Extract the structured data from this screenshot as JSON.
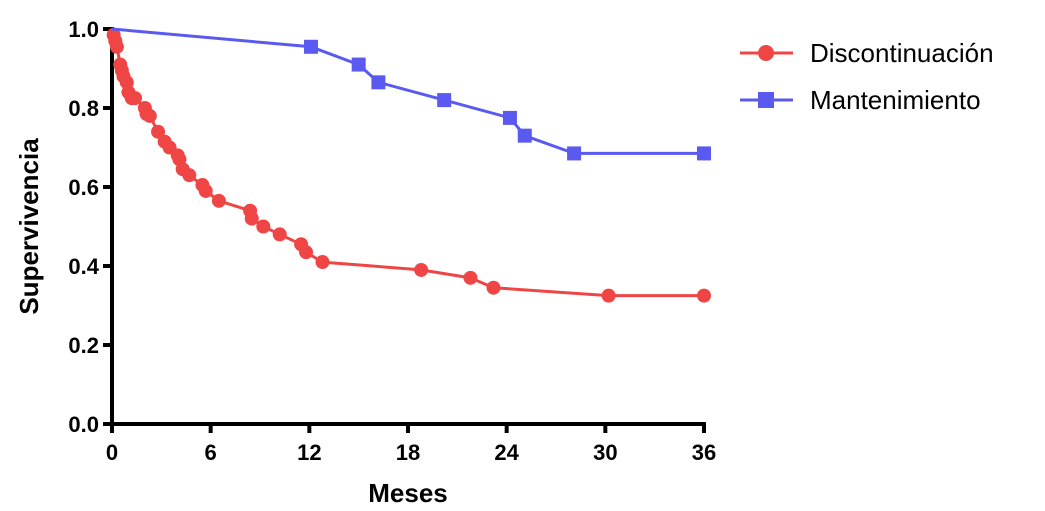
{
  "chart_data": {
    "type": "line",
    "xlabel": "Meses",
    "ylabel": "Supervivencia",
    "xlim": [
      0,
      36
    ],
    "ylim": [
      0,
      1.0
    ],
    "xticks": [
      0,
      6,
      12,
      18,
      24,
      30,
      36
    ],
    "xtick_labels": [
      "0",
      "6",
      "12",
      "18",
      "24",
      "30",
      "36"
    ],
    "yticks": [
      0.0,
      0.2,
      0.4,
      0.6,
      0.8,
      1.0
    ],
    "ytick_labels": [
      "0.0",
      "0.2",
      "0.4",
      "0.6",
      "0.8",
      "1.0"
    ],
    "grid": false,
    "legend_position": "top-right, outside plot",
    "series": [
      {
        "name": "Discontinuación",
        "color": "#f04545",
        "marker": "circle",
        "x": [
          0,
          0.1,
          0.2,
          0.3,
          0.5,
          0.6,
          0.7,
          0.9,
          1.0,
          1.2,
          1.4,
          2.0,
          2.1,
          2.3,
          2.8,
          3.2,
          3.5,
          4.0,
          4.1,
          4.3,
          4.7,
          5.5,
          5.7,
          6.5,
          8.4,
          8.5,
          9.2,
          10.2,
          11.5,
          11.8,
          12.8,
          18.8,
          21.8,
          23.2,
          30.2,
          36
        ],
        "y": [
          1.0,
          0.985,
          0.97,
          0.955,
          0.91,
          0.895,
          0.88,
          0.865,
          0.84,
          0.825,
          0.825,
          0.8,
          0.785,
          0.78,
          0.74,
          0.715,
          0.7,
          0.68,
          0.67,
          0.645,
          0.63,
          0.605,
          0.59,
          0.565,
          0.54,
          0.52,
          0.5,
          0.48,
          0.455,
          0.435,
          0.41,
          0.39,
          0.37,
          0.345,
          0.325,
          0.325
        ]
      },
      {
        "name": "Mantenimiento",
        "color": "#5a5af0",
        "marker": "square",
        "x": [
          0,
          12.1,
          15.0,
          16.2,
          20.2,
          24.2,
          25.1,
          28.1,
          36
        ],
        "y": [
          1.0,
          0.955,
          0.91,
          0.865,
          0.82,
          0.775,
          0.73,
          0.685,
          0.685
        ]
      }
    ]
  }
}
